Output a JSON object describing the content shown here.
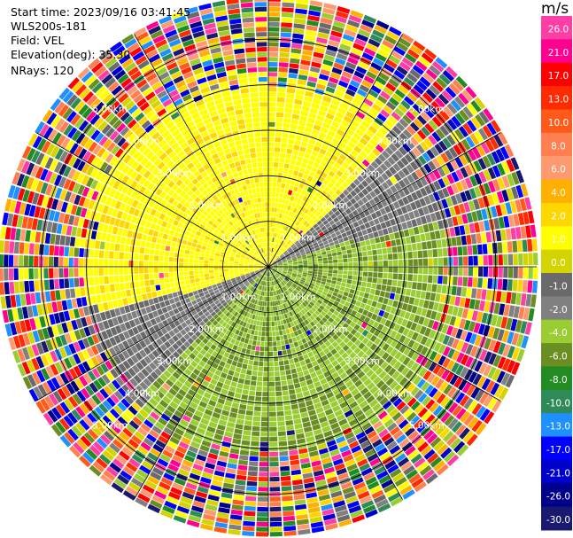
{
  "header": {
    "start_time": "Start time: 2023/09/16 03:41:45",
    "device": "WLS200s-181",
    "field": "Field: VEL",
    "elevation": "Elevation(deg): 35.30",
    "nrays": "NRays: 120"
  },
  "chart_data": {
    "type": "radar_ppi",
    "field": "VEL",
    "units": "m/s",
    "n_rays": 120,
    "range_rings_km": [
      1.0,
      2.0,
      3.0,
      4.0,
      5.0
    ],
    "ring_labels": [
      "1.00km",
      "2.00km",
      "3.00km",
      "4.00km",
      "5.00km"
    ],
    "max_range_km": 5.9,
    "colorbar": {
      "title": "m/s",
      "ticks": [
        "26.0",
        "21.0",
        "17.0",
        "13.0",
        "10.0",
        "8.0",
        "6.0",
        "4.0",
        "2.0",
        "1.0",
        "0.0",
        "-1.0",
        "-2.0",
        "-4.0",
        "-6.0",
        "-8.0",
        "-10.0",
        "-13.0",
        "-17.0",
        "-21.0",
        "-26.0",
        "-30.0"
      ],
      "colors": [
        "#ff3ea5",
        "#ff0090",
        "#ff0000",
        "#ff2a00",
        "#ff5a1a",
        "#ff7f50",
        "#ff9a70",
        "#ffb000",
        "#ffd700",
        "#ffff00",
        "#d4d400",
        "#6a6a6a",
        "#808080",
        "#9acd32",
        "#6b8e23",
        "#228b22",
        "#2e8b57",
        "#1e90ff",
        "#0000ff",
        "#0000cd",
        "#00008b",
        "#191970"
      ]
    },
    "velocity_pattern": {
      "receding_sector": "north-west half, positive velocity (yellow, ~2.0 to 4.0 m/s)",
      "approaching_sector": "south-east half, negative velocity (green, ~-2.0 to -4.0 m/s)",
      "zero_line_azimuth_deg": 60,
      "clean_range_km": 4.4
    }
  }
}
